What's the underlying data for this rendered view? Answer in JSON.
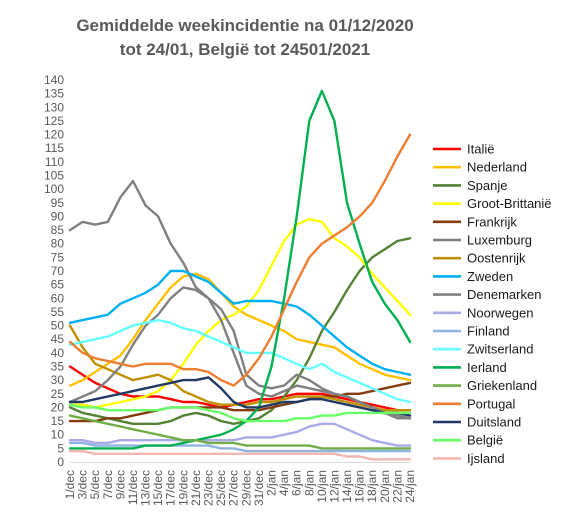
{
  "chart_data": {
    "type": "line",
    "title": [
      "Gemiddelde weekincidentie  na 01/12/2020",
      "tot 24/01, België tot 24501/2021"
    ],
    "xlabel": "",
    "ylabel": "",
    "ylim": [
      0,
      140
    ],
    "yticks": [
      0,
      5,
      10,
      15,
      20,
      25,
      30,
      35,
      40,
      45,
      50,
      55,
      60,
      65,
      70,
      75,
      80,
      85,
      90,
      95,
      100,
      105,
      110,
      115,
      120,
      125,
      130,
      135,
      140
    ],
    "categories": [
      "1/dec",
      "3/dec",
      "5/dec",
      "7/dec",
      "9/dec",
      "11/dec",
      "13/dec",
      "15/dec",
      "17/dec",
      "19/dec",
      "21/dec",
      "23/dec",
      "25/dec",
      "27/dec",
      "29/dec",
      "31/dec",
      "2/jan",
      "4/jan",
      "6/jan",
      "8/jan",
      "10/jan",
      "12/jan",
      "14/jan",
      "16/jan",
      "18/jan",
      "20/jan",
      "22/jan",
      "24/jan"
    ],
    "grid": false,
    "legend": "right",
    "series": [
      {
        "name": "Italië",
        "color": "#ff0000",
        "values": [
          35,
          32,
          29,
          27,
          25,
          24,
          24,
          24,
          23,
          22,
          22,
          21,
          20,
          21,
          22,
          23,
          23,
          24,
          25,
          25,
          25,
          24,
          23,
          22,
          21,
          20,
          19,
          19
        ]
      },
      {
        "name": "Nederland",
        "color": "#ffc000",
        "values": [
          28,
          30,
          33,
          36,
          39,
          45,
          52,
          58,
          64,
          68,
          69,
          67,
          62,
          57,
          54,
          52,
          50,
          48,
          45,
          44,
          43,
          42,
          39,
          36,
          34,
          32,
          31,
          30
        ]
      },
      {
        "name": "Spanje",
        "color": "#548235",
        "values": [
          20,
          18,
          17,
          16,
          15,
          14,
          14,
          14,
          15,
          17,
          18,
          17,
          15,
          14,
          15,
          16,
          19,
          24,
          30,
          38,
          48,
          55,
          63,
          70,
          75,
          78,
          81,
          82
        ]
      },
      {
        "name": "Groot-Brittanië",
        "color": "#ffff00",
        "values": [
          21,
          21,
          20,
          21,
          22,
          23,
          24,
          26,
          30,
          36,
          43,
          48,
          52,
          54,
          57,
          63,
          72,
          81,
          87,
          89,
          88,
          82,
          79,
          75,
          69,
          64,
          59,
          54
        ]
      },
      {
        "name": "Frankrijk",
        "color": "#843c0c",
        "values": [
          15,
          15,
          15,
          16,
          16,
          17,
          18,
          19,
          20,
          20,
          20,
          20,
          20,
          19,
          19,
          19,
          20,
          21,
          22,
          23,
          24,
          24,
          25,
          25,
          26,
          27,
          28,
          29
        ]
      },
      {
        "name": "Luxemburg",
        "color": "#7f7f7f",
        "values": [
          85,
          88,
          87,
          88,
          97,
          103,
          94,
          90,
          80,
          73,
          64,
          60,
          52,
          40,
          28,
          25,
          24,
          26,
          28,
          27,
          26,
          25,
          24,
          22,
          20,
          18,
          16,
          16
        ]
      },
      {
        "name": "Oostenrijk",
        "color": "#bf9000",
        "values": [
          50,
          42,
          36,
          34,
          32,
          30,
          31,
          32,
          30,
          26,
          24,
          22,
          21,
          21,
          21,
          22,
          22,
          23,
          24,
          24,
          24,
          23,
          22,
          21,
          20,
          19,
          19,
          19
        ]
      },
      {
        "name": "Zweden",
        "color": "#00b0f0",
        "values": [
          51,
          52,
          53,
          54,
          58,
          60,
          62,
          65,
          70,
          70,
          68,
          66,
          62,
          58,
          59,
          59,
          59,
          58,
          57,
          54,
          50,
          46,
          42,
          39,
          36,
          34,
          33,
          32
        ]
      },
      {
        "name": "Denemarken",
        "color": "#808080",
        "values": [
          22,
          24,
          26,
          30,
          35,
          43,
          50,
          54,
          60,
          64,
          63,
          60,
          56,
          48,
          32,
          28,
          27,
          28,
          32,
          30,
          27,
          25,
          24,
          22,
          20,
          18,
          17,
          16
        ]
      },
      {
        "name": "Noorwegen",
        "color": "#a9a9e8",
        "values": [
          8,
          8,
          7,
          7,
          8,
          8,
          8,
          8,
          8,
          8,
          8,
          8,
          8,
          8,
          9,
          9,
          9,
          10,
          11,
          13,
          14,
          14,
          12,
          10,
          8,
          7,
          6,
          6
        ]
      },
      {
        "name": "Finland",
        "color": "#8db4e2",
        "values": [
          7,
          7,
          6,
          6,
          6,
          6,
          6,
          6,
          6,
          6,
          6,
          6,
          5,
          5,
          4,
          4,
          4,
          4,
          4,
          4,
          4,
          4,
          4,
          4,
          4,
          4,
          4,
          4
        ]
      },
      {
        "name": "Zwitserland",
        "color": "#66ffff",
        "values": [
          43,
          44,
          45,
          46,
          48,
          50,
          51,
          52,
          51,
          49,
          48,
          46,
          44,
          42,
          40,
          40,
          40,
          38,
          36,
          34,
          36,
          33,
          31,
          29,
          27,
          25,
          23,
          22
        ]
      },
      {
        "name": "Ierland",
        "color": "#00b050",
        "values": [
          5,
          5,
          5,
          5,
          5,
          5,
          6,
          6,
          6,
          7,
          8,
          9,
          10,
          12,
          15,
          20,
          35,
          60,
          90,
          125,
          136,
          125,
          95,
          80,
          66,
          58,
          52,
          44
        ]
      },
      {
        "name": "Griekenland",
        "color": "#70ad47",
        "values": [
          17,
          16,
          15,
          14,
          13,
          12,
          11,
          10,
          9,
          8,
          8,
          7,
          7,
          7,
          6,
          6,
          6,
          6,
          6,
          6,
          5,
          5,
          5,
          5,
          5,
          5,
          5,
          5
        ]
      },
      {
        "name": "Portugal",
        "color": "#ed7d31",
        "values": [
          44,
          40,
          38,
          37,
          36,
          35,
          36,
          36,
          36,
          34,
          34,
          33,
          30,
          28,
          32,
          38,
          46,
          56,
          66,
          75,
          80,
          83,
          86,
          90,
          95,
          103,
          112,
          120
        ]
      },
      {
        "name": "Duitsland",
        "color": "#1f3864",
        "values": [
          22,
          22,
          23,
          24,
          25,
          26,
          27,
          28,
          29,
          30,
          30,
          31,
          27,
          22,
          20,
          20,
          21,
          22,
          22,
          23,
          23,
          22,
          21,
          20,
          19,
          18,
          18,
          17
        ]
      },
      {
        "name": "België",
        "color": "#66ff66",
        "values": [
          21,
          20,
          20,
          19,
          19,
          19,
          19,
          19,
          20,
          20,
          20,
          19,
          18,
          16,
          15,
          15,
          15,
          15,
          16,
          16,
          17,
          17,
          18,
          18,
          18,
          18,
          18,
          18
        ]
      },
      {
        "name": "Ijsland",
        "color": "#f4b6b0",
        "values": [
          4,
          4,
          3,
          3,
          3,
          3,
          3,
          3,
          3,
          3,
          3,
          3,
          3,
          3,
          3,
          3,
          3,
          3,
          3,
          3,
          3,
          3,
          2,
          2,
          1,
          1,
          1,
          1
        ]
      }
    ]
  }
}
